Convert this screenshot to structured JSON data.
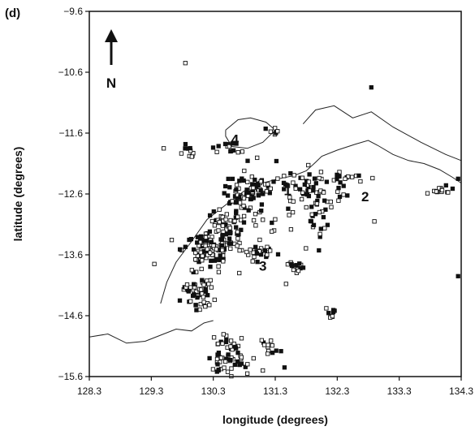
{
  "panel_label": "(d)",
  "chart_data": {
    "type": "scatter",
    "title": "",
    "xlabel": "longitude (degrees)",
    "ylabel": "latitude (degrees)",
    "xlim": [
      128.3,
      134.3
    ],
    "ylim": [
      -15.6,
      -9.6
    ],
    "x_ticks": [
      "128.3",
      "129.3",
      "130.3",
      "131.3",
      "132.3",
      "133.3",
      "134.3"
    ],
    "y_ticks": [
      "-9.6",
      "-10.6",
      "-11.6",
      "-12.6",
      "-13.6",
      "-14.6",
      "-15.6"
    ],
    "grid": false,
    "marker": "open-square",
    "north_arrow": {
      "label": "N",
      "icon": "north-arrow-icon"
    },
    "region_labels": [
      {
        "text": "1",
        "x": 131.5,
        "y": -12.62
      },
      {
        "text": "2",
        "x": 132.75,
        "y": -12.72
      },
      {
        "text": "3",
        "x": 131.1,
        "y": -13.86
      },
      {
        "text": "4",
        "x": 130.65,
        "y": -11.78
      }
    ],
    "coastline": [
      [
        [
          128.3,
          -14.95
        ],
        [
          128.6,
          -14.9
        ],
        [
          128.9,
          -15.05
        ],
        [
          129.2,
          -15.02
        ],
        [
          129.45,
          -14.92
        ],
        [
          129.7,
          -14.82
        ],
        [
          129.95,
          -14.85
        ],
        [
          130.15,
          -14.72
        ],
        [
          130.3,
          -14.68
        ]
      ],
      [
        [
          129.45,
          -14.4
        ],
        [
          129.55,
          -14.05
        ],
        [
          129.7,
          -13.72
        ],
        [
          129.95,
          -13.38
        ],
        [
          130.2,
          -13.02
        ],
        [
          130.5,
          -12.78
        ],
        [
          130.8,
          -12.55
        ],
        [
          131.1,
          -12.42
        ],
        [
          131.35,
          -12.35
        ],
        [
          131.6,
          -12.3
        ],
        [
          131.8,
          -12.22
        ],
        [
          131.95,
          -12.08
        ],
        [
          132.05,
          -11.98
        ],
        [
          132.3,
          -11.88
        ],
        [
          132.6,
          -11.78
        ],
        [
          132.8,
          -11.72
        ],
        [
          132.95,
          -11.8
        ],
        [
          133.2,
          -11.95
        ],
        [
          133.45,
          -12.05
        ],
        [
          133.7,
          -12.1
        ],
        [
          133.95,
          -12.2
        ],
        [
          134.15,
          -12.32
        ],
        [
          134.3,
          -12.42
        ]
      ],
      [
        [
          130.5,
          -11.55
        ],
        [
          130.7,
          -11.38
        ],
        [
          130.9,
          -11.35
        ],
        [
          131.15,
          -11.42
        ],
        [
          131.3,
          -11.55
        ],
        [
          131.1,
          -11.75
        ],
        [
          130.85,
          -11.85
        ],
        [
          130.6,
          -11.82
        ],
        [
          130.5,
          -11.65
        ],
        [
          130.5,
          -11.55
        ]
      ],
      [
        [
          131.75,
          -11.45
        ],
        [
          131.95,
          -11.22
        ],
        [
          132.25,
          -11.15
        ],
        [
          132.55,
          -11.35
        ],
        [
          132.85,
          -11.25
        ],
        [
          133.2,
          -11.5
        ],
        [
          133.65,
          -11.75
        ],
        [
          134.05,
          -11.95
        ],
        [
          134.3,
          -12.05
        ]
      ]
    ],
    "clusters": [
      {
        "x": 130.05,
        "y": -14.18,
        "sx": 0.13,
        "sy": 0.16,
        "n": 55
      },
      {
        "x": 130.2,
        "y": -13.52,
        "sx": 0.18,
        "sy": 0.16,
        "n": 80
      },
      {
        "x": 130.5,
        "y": -13.28,
        "sx": 0.16,
        "sy": 0.2,
        "n": 75
      },
      {
        "x": 130.8,
        "y": -12.75,
        "sx": 0.15,
        "sy": 0.22,
        "n": 55
      },
      {
        "x": 131.02,
        "y": -12.52,
        "sx": 0.2,
        "sy": 0.08,
        "n": 35
      },
      {
        "x": 131.0,
        "y": -13.55,
        "sx": 0.15,
        "sy": 0.08,
        "n": 28
      },
      {
        "x": 131.95,
        "y": -12.5,
        "sx": 0.28,
        "sy": 0.12,
        "n": 45
      },
      {
        "x": 132.0,
        "y": -12.95,
        "sx": 0.1,
        "sy": 0.2,
        "n": 25
      },
      {
        "x": 130.55,
        "y": -15.22,
        "sx": 0.15,
        "sy": 0.15,
        "n": 60
      },
      {
        "x": 131.6,
        "y": -13.78,
        "sx": 0.1,
        "sy": 0.05,
        "n": 14
      },
      {
        "x": 130.55,
        "y": -11.82,
        "sx": 0.12,
        "sy": 0.06,
        "n": 14
      },
      {
        "x": 129.9,
        "y": -11.88,
        "sx": 0.1,
        "sy": 0.06,
        "n": 10
      },
      {
        "x": 133.95,
        "y": -12.55,
        "sx": 0.1,
        "sy": 0.04,
        "n": 14
      },
      {
        "x": 132.2,
        "y": -14.55,
        "sx": 0.04,
        "sy": 0.06,
        "n": 8
      },
      {
        "x": 131.25,
        "y": -11.55,
        "sx": 0.08,
        "sy": 0.06,
        "n": 6
      },
      {
        "x": 132.6,
        "y": -12.35,
        "sx": 0.15,
        "sy": 0.06,
        "n": 12
      },
      {
        "x": 131.2,
        "y": -15.15,
        "sx": 0.08,
        "sy": 0.08,
        "n": 12
      },
      {
        "x": 131.5,
        "y": -12.85,
        "sx": 0.5,
        "sy": 0.5,
        "n": 28
      }
    ],
    "isolated_points": [
      [
        129.85,
        -10.45
      ],
      [
        132.85,
        -10.85
      ],
      [
        129.5,
        -11.85
      ],
      [
        134.25,
        -12.35
      ],
      [
        134.25,
        -13.95
      ],
      [
        132.9,
        -13.05
      ],
      [
        131.45,
        -15.45
      ],
      [
        130.95,
        -15.3
      ],
      [
        129.35,
        -13.75
      ],
      [
        130.85,
        -15.55
      ],
      [
        131.1,
        -15.5
      ]
    ]
  }
}
